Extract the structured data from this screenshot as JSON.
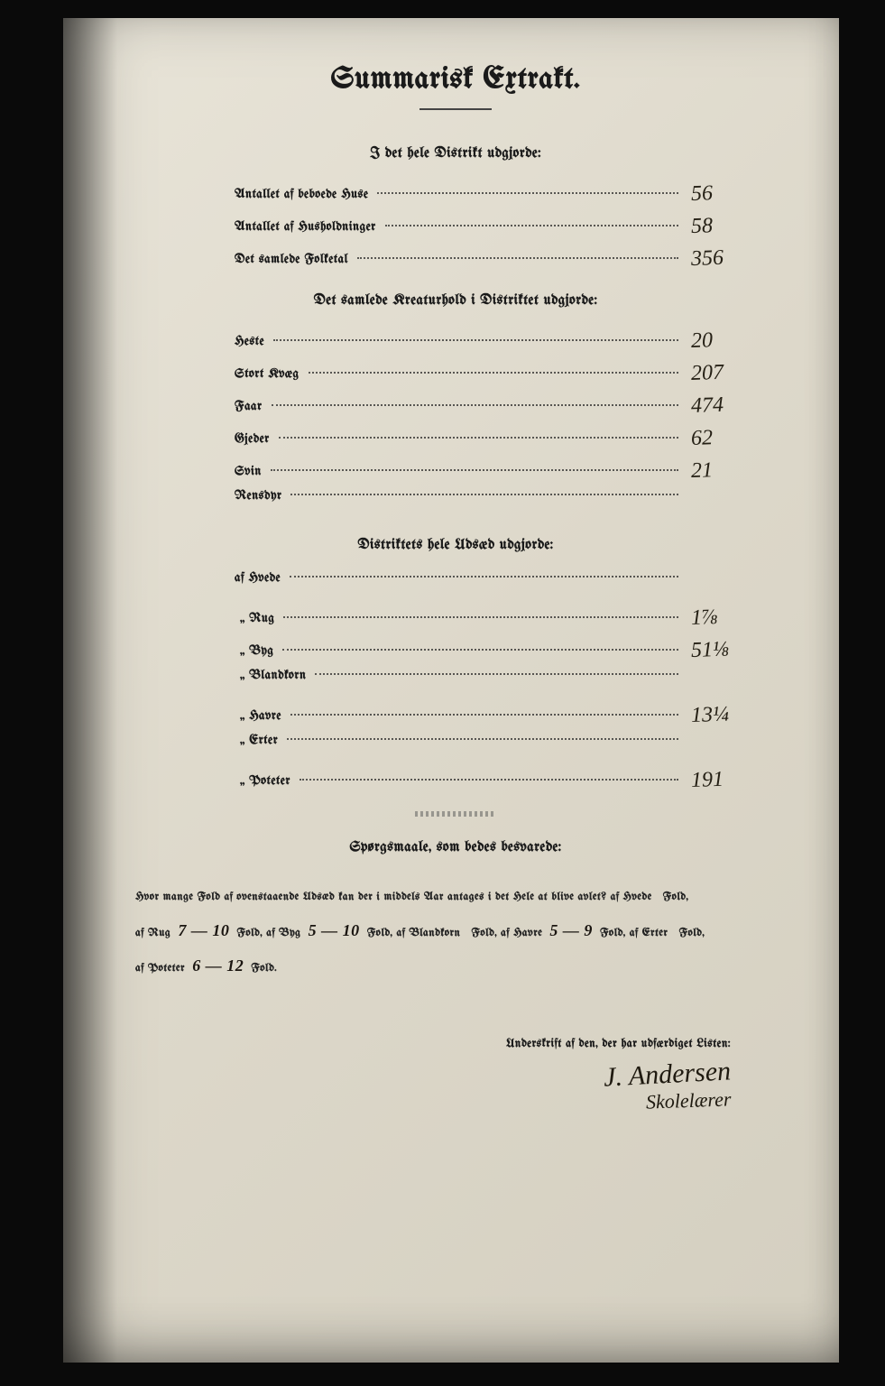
{
  "title": "Summarisk Extrakt.",
  "sections": {
    "district_totals": {
      "heading": "I det hele Distrikt udgjorde:",
      "rows": [
        {
          "label": "Antallet af beboede Huse",
          "value": "56"
        },
        {
          "label": "Antallet af Husholdninger",
          "value": "58"
        },
        {
          "label": "Det samlede Folketal",
          "value": "356"
        }
      ]
    },
    "livestock": {
      "heading": "Det samlede Kreaturhold i Distriktet udgjorde:",
      "rows": [
        {
          "label": "Heste",
          "value": "20"
        },
        {
          "label": "Stort Kvæg",
          "value": "207"
        },
        {
          "label": "Faar",
          "value": "474"
        },
        {
          "label": "Gjeder",
          "value": "62"
        },
        {
          "label": "Svin",
          "value": "21"
        },
        {
          "label": "Rensdyr",
          "value": ""
        }
      ]
    },
    "sowing": {
      "heading": "Distriktets hele Udsæd udgjorde:",
      "rows": [
        {
          "label": "af Hvede",
          "value": ""
        },
        {
          "label": "„ Rug",
          "value": "1⅞"
        },
        {
          "label": "„ Byg",
          "value": "51⅛"
        },
        {
          "label": "„ Blandkorn",
          "value": ""
        },
        {
          "label": "„ Havre",
          "value": "13¼"
        },
        {
          "label": "„ Erter",
          "value": ""
        },
        {
          "label": "„ Poteter",
          "value": "191"
        }
      ]
    }
  },
  "questions": {
    "heading": "Spørgsmaale, som bedes besvarede:",
    "intro": "Hvor mange Fold af ovenstaaende Udsæd kan der i middels Aar antages i det Hele at blive avlet?  af Hvede",
    "hvede": "",
    "rug": "7 — 10",
    "byg": "5 — 10",
    "blandkorn": "",
    "havre": "5 — 9",
    "erter": "",
    "poteter": "6 — 12"
  },
  "signature": {
    "caption": "Underskrift af den, der har udfærdiget Listen:",
    "name": "J. Andersen",
    "role": "Skolelærer"
  },
  "colors": {
    "paper": "#ddd8ca",
    "ink_print": "#1a1a1a",
    "ink_hand": "#252015",
    "scan_bg": "#0a0a0a"
  }
}
